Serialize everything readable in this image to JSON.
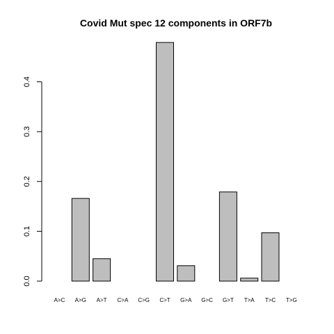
{
  "chart_data": {
    "type": "bar",
    "title": "Covid Mut spec 12 components in ORF7b",
    "xlabel": "",
    "ylabel": "",
    "categories": [
      "A>C",
      "A>G",
      "A>T",
      "C>A",
      "C>G",
      "C>T",
      "G>A",
      "G>C",
      "G>T",
      "T>A",
      "T>C",
      "T>G"
    ],
    "values": [
      0.0,
      0.166,
      0.045,
      0.0,
      0.0,
      0.479,
      0.031,
      0.0,
      0.179,
      0.006,
      0.097,
      0.0
    ],
    "yticks": [
      "0.0",
      "0.1",
      "0.2",
      "0.3",
      "0.4"
    ],
    "ylim": [
      0,
      0.48
    ],
    "grid": false,
    "bar_color": "#bebebe",
    "edge_color": "#000000"
  }
}
